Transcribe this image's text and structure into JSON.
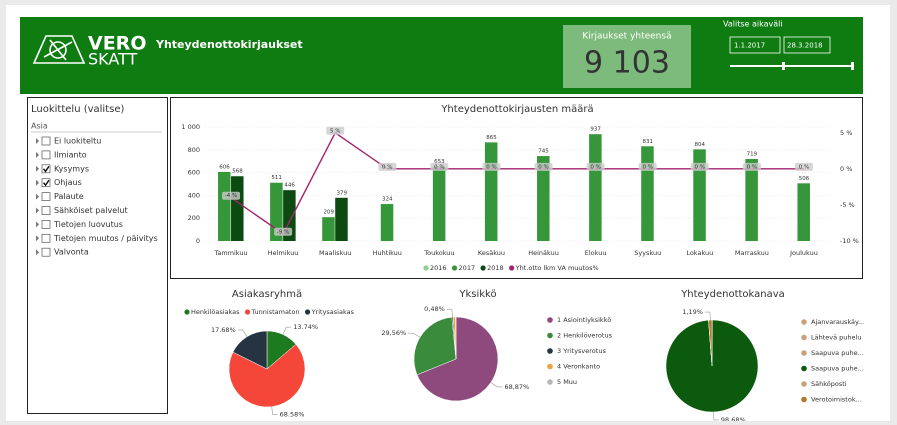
{
  "header": {
    "logo": [
      "VERO",
      "SKATT"
    ],
    "title": "Yhteydenottokirjaukset"
  },
  "kpi": {
    "label": "Kirjaukset yhteensä",
    "value": "9 103"
  },
  "date_range": {
    "label": "Valitse aikaväli",
    "start": "1.1.2017",
    "end": "28.3.2018"
  },
  "slicer": {
    "title": "Luokittelu (valitse)",
    "field": "Asia",
    "items": [
      {
        "label": "Ei luokiteltu",
        "checked": false
      },
      {
        "label": "Ilmianto",
        "checked": false
      },
      {
        "label": "Kysymys",
        "checked": true
      },
      {
        "label": "Ohjaus",
        "checked": true
      },
      {
        "label": "Palaute",
        "checked": false
      },
      {
        "label": "Sähköiset palvelut",
        "checked": false
      },
      {
        "label": "Tietojen luovutus",
        "checked": false
      },
      {
        "label": "Tietojen muutos / päivitys",
        "checked": false
      },
      {
        "label": "Valvonta",
        "checked": false
      }
    ]
  },
  "chart_data": [
    {
      "type": "combo",
      "title": "Yhteydenottokirjausten määrä",
      "categories": [
        "Tammikuu",
        "Helmikuu",
        "Maaliskuu",
        "Huhtikuu",
        "Toukokuu",
        "Kesäkuu",
        "Heinäkuu",
        "Elokuu",
        "Syyskuu",
        "Lokakuu",
        "Marraskuu",
        "Joulukuu"
      ],
      "ylim": [
        0,
        1000
      ],
      "yticks": [
        0,
        200,
        400,
        600,
        800,
        {
          "value": 1000,
          "label": "1 000"
        }
      ],
      "y2lim": [
        -10,
        5.8
      ],
      "y2ticks": [
        {
          "value": 5,
          "label": "5 %"
        },
        {
          "value": 0,
          "label": "0 %"
        },
        {
          "value": -5,
          "label": "-5 %"
        },
        {
          "value": -10,
          "label": "-10 %"
        }
      ],
      "grid": true,
      "legend": "bottom",
      "series": [
        {
          "name": "2016",
          "type": "bar",
          "color": "#8fcf8f",
          "values": [
            null,
            null,
            null,
            null,
            null,
            null,
            null,
            null,
            null,
            null,
            null,
            null
          ]
        },
        {
          "name": "2017",
          "type": "bar",
          "color": "#36963a",
          "values": [
            606,
            511,
            209,
            324,
            653,
            865,
            745,
            937,
            831,
            804,
            719,
            506
          ]
        },
        {
          "name": "2018",
          "type": "bar",
          "color": "#0d4a12",
          "values": [
            568,
            446,
            379,
            null,
            null,
            null,
            null,
            null,
            null,
            null,
            null,
            null
          ]
        },
        {
          "name": "Yht.otto lkm VA muutos%",
          "type": "line",
          "axis": "y2",
          "color": "#a3236f",
          "values": [
            -4,
            -9,
            5,
            0,
            0,
            0,
            0,
            0,
            0,
            0,
            0,
            0
          ],
          "value_labels": [
            "-4 %",
            "-9 %",
            "5 %",
            "0 %",
            "0 %",
            "0 %",
            "0 %",
            "0 %",
            "0 %",
            "0 %",
            "0 %",
            "0 %"
          ]
        }
      ]
    },
    {
      "type": "pie",
      "title": "Asiakasryhmä",
      "legend": "top",
      "categories": [
        "Henkilöasiakas",
        "Tunnistamaton",
        "Yritysasiakas"
      ],
      "values": [
        13.74,
        68.58,
        17.68
      ],
      "value_labels": [
        "13.74%",
        "68.58%",
        "17.68%"
      ],
      "colors": [
        "#1d7a1f",
        "#f4473a",
        "#253342"
      ]
    },
    {
      "type": "pie",
      "title": "Yksikkö",
      "legend": "right",
      "categories": [
        "1 Asiointiyksikkö",
        "2 Henkilöverotus",
        "3 Yritysverotus",
        "4 Veronkanto",
        "5 Muu"
      ],
      "values": [
        68.87,
        29.56,
        0.48,
        0.9,
        0.19
      ],
      "value_labels": [
        "68,87%",
        "29,56%",
        "0,48%",
        null,
        null
      ],
      "colors": [
        "#8e4a7c",
        "#3a8b3c",
        "#253342",
        "#f2a23a",
        "#b8b8b8"
      ]
    },
    {
      "type": "pie",
      "title": "Yhteydenottokanava",
      "legend": "right",
      "categories": [
        "Ajanvarauskäy...",
        "Lähtevä puhelu",
        "Saapuva puhe...",
        "Saapuva puhe...",
        "Sähköposti",
        "Verotoimistok..."
      ],
      "values": [
        0.05,
        0.03,
        0.03,
        98.68,
        0.02,
        1.19
      ],
      "value_labels": [
        null,
        null,
        null,
        "98,68%",
        null,
        "1,19%"
      ],
      "colors": [
        "#c9a27c",
        "#c9a27c",
        "#c9a27c",
        "#0b5a0d",
        "#c9a27c",
        "#b07a2a"
      ]
    }
  ]
}
